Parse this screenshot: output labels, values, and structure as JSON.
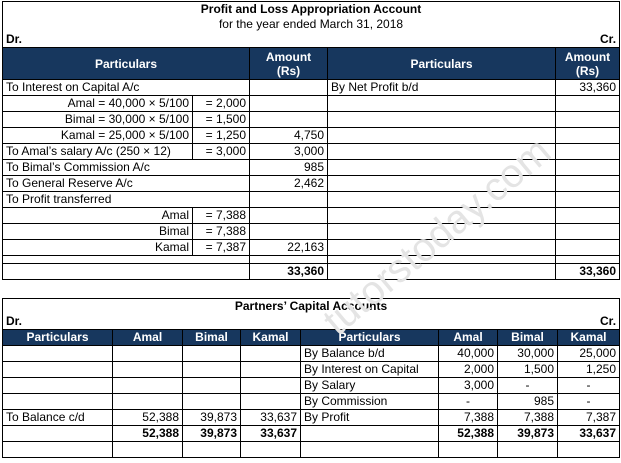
{
  "table1": {
    "title": "Profit and Loss Appropriation Account",
    "subtitle": "for the year ended March 31, 2018",
    "dr": "Dr.",
    "cr": "Cr.",
    "headers": [
      "Particulars",
      "Amount (Rs)",
      "Particulars",
      "Amount (Rs)"
    ],
    "rows": [
      {
        "label": "To Interest on Capital A/c",
        "cr_label": "By Net Profit b/d",
        "cr_amount": "33,360"
      },
      {
        "label": "Amal = 40,000 × 5/100",
        "calc": "= 2,000"
      },
      {
        "label": "Bimal = 30,000 × 5/100",
        "calc": "= 1,500"
      },
      {
        "label": "Kamal = 25,000 × 5/100",
        "calc": "= 1,250",
        "amount": "4,750"
      },
      {
        "label": "To Amal’s salary A/c (250 × 12)",
        "calc": "= 3,000",
        "amount": "3,000"
      },
      {
        "label": "To Bimal’s Commission A/c",
        "amount": "985"
      },
      {
        "label": "To General Reserve A/c",
        "amount": "2,462"
      },
      {
        "label": "To Profit transferred"
      },
      {
        "label": "Amal",
        "calc": "= 7,388"
      },
      {
        "label": "Bimal",
        "calc": "= 7,388"
      },
      {
        "label": "Kamal",
        "calc": "= 7,387",
        "amount": "22,163"
      },
      {}
    ],
    "totals": {
      "dr": "33,360",
      "cr": "33,360"
    }
  },
  "table2": {
    "title": "Partners’ Capital Accounts",
    "dr": "Dr.",
    "cr": "Cr.",
    "headers": [
      "Particulars",
      "Amal",
      "Bimal",
      "Kamal",
      "Particulars",
      "Amal",
      "Bimal",
      "Kamal"
    ],
    "rows": [
      {
        "cr": [
          "By Balance b/d",
          "40,000",
          "30,000",
          "25,000"
        ]
      },
      {
        "cr": [
          "By Interest on Capital",
          "2,000",
          "1,500",
          "1,250"
        ]
      },
      {
        "cr": [
          "By Salary",
          "3,000",
          "-",
          "-"
        ]
      },
      {
        "cr": [
          "By Commission",
          "-",
          "985",
          "-"
        ]
      },
      {
        "dr": [
          "To Balance c/d",
          "52,388",
          "39,873",
          "33,637"
        ],
        "cr": [
          "By Profit",
          "7,388",
          "7,388",
          "7,387"
        ]
      }
    ],
    "totals": {
      "dr": [
        "52,388",
        "39,873",
        "33,637"
      ],
      "cr": [
        "52,388",
        "39,873",
        "33,637"
      ]
    }
  },
  "watermark": "tutorstoday.com"
}
